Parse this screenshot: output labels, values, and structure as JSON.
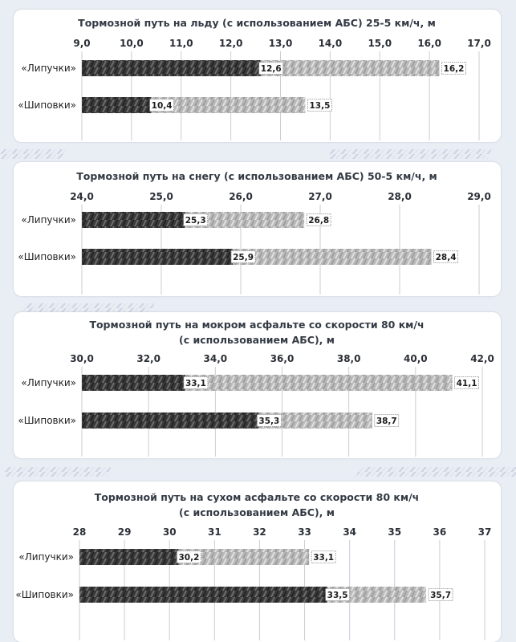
{
  "chart_data": [
    {
      "type": "bar",
      "title_lines": [
        "Тормозной путь на льду (с использованием АБС) 25-5 км/ч, м"
      ],
      "ticks": [
        "9,0",
        "10,0",
        "11,0",
        "12,0",
        "13,0",
        "14,0",
        "15,0",
        "16,0",
        "17,0"
      ],
      "xlim": [
        9,
        17
      ],
      "categories": [
        "«Липучки»",
        "«Шиповки»"
      ],
      "series": [
        {
          "name": "value-1",
          "values": [
            12.6,
            10.4
          ]
        },
        {
          "name": "value-2",
          "values": [
            16.2,
            13.5
          ]
        }
      ],
      "value_labels": [
        [
          "12,6",
          "16,2"
        ],
        [
          "10,4",
          "13,5"
        ]
      ]
    },
    {
      "type": "bar",
      "title_lines": [
        "Тормозной путь на снегу (с использованием АБС) 50-5 км/ч, м"
      ],
      "ticks": [
        "24,0",
        "25,0",
        "26,0",
        "27,0",
        "28,0",
        "29,0"
      ],
      "xlim": [
        24,
        29
      ],
      "categories": [
        "«Липучки»",
        "«Шиповки»"
      ],
      "series": [
        {
          "name": "value-1",
          "values": [
            25.3,
            25.9
          ]
        },
        {
          "name": "value-2",
          "values": [
            26.8,
            28.4
          ]
        }
      ],
      "value_labels": [
        [
          "25,3",
          "26,8"
        ],
        [
          "25,9",
          "28,4"
        ]
      ]
    },
    {
      "type": "bar",
      "title_lines": [
        "Тормозной путь на мокром асфальте со скорости 80 км/ч",
        "(с использованием АБС), м"
      ],
      "ticks": [
        "30,0",
        "32,0",
        "34,0",
        "36,0",
        "38,0",
        "40,0",
        "42,0"
      ],
      "xlim": [
        30,
        42
      ],
      "categories": [
        "«Липучки»",
        "«Шиповки»"
      ],
      "series": [
        {
          "name": "value-1",
          "values": [
            33.1,
            35.3
          ]
        },
        {
          "name": "value-2",
          "values": [
            41.1,
            38.7
          ]
        }
      ],
      "value_labels": [
        [
          "33,1",
          "41,1"
        ],
        [
          "35,3",
          "38,7"
        ]
      ]
    },
    {
      "type": "bar",
      "title_lines": [
        "Тормозной путь на сухом асфальте со скорости 80 км/ч",
        "(с использованием АБС), м"
      ],
      "ticks": [
        "28",
        "29",
        "30",
        "31",
        "32",
        "33",
        "34",
        "35",
        "36",
        "37"
      ],
      "xlim": [
        28,
        37
      ],
      "categories": [
        "«Липучки»",
        "«Шиповки»"
      ],
      "series": [
        {
          "name": "value-1",
          "values": [
            30.2,
            33.5
          ]
        },
        {
          "name": "value-2",
          "values": [
            33.1,
            35.7
          ]
        }
      ],
      "value_labels": [
        [
          "30,2",
          "33,1"
        ],
        [
          "33,5",
          "35,7"
        ]
      ]
    }
  ],
  "colors": {
    "page_background": "#e9edf4",
    "panel_background": "#ffffff",
    "dark_tread": "#3a3a3a",
    "light_tread": "#b9b9b9",
    "grid": "#c9ced6"
  }
}
